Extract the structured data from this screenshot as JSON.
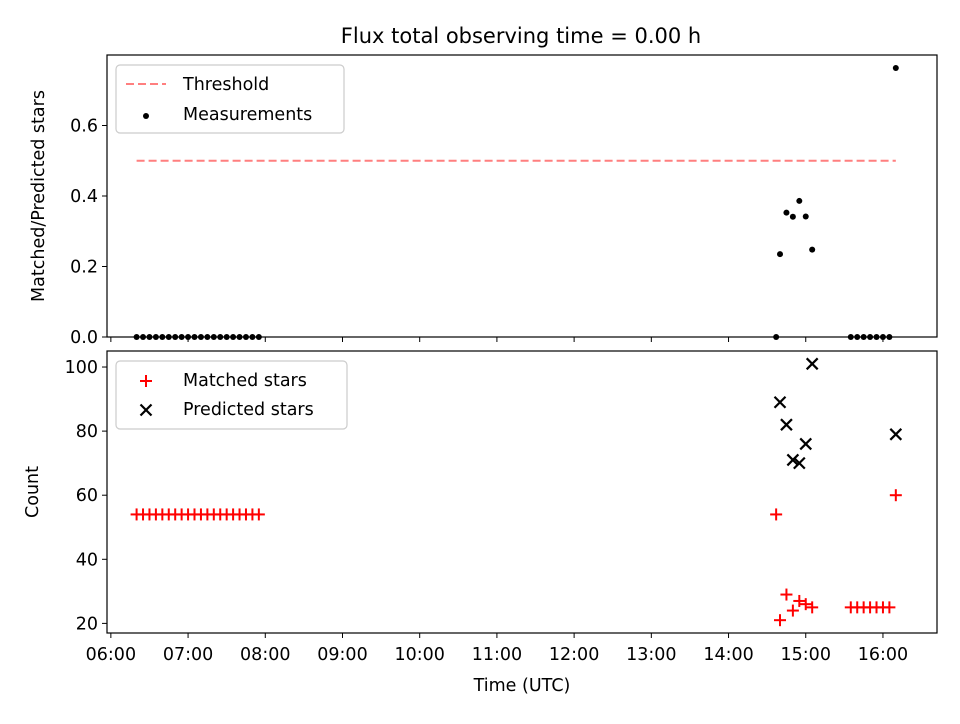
{
  "chart_data": [
    {
      "type": "line+scatter",
      "title": "Flux total observing time = 0.00 h",
      "ylabel": "Matched/Predicted stars",
      "ylim": [
        0,
        0.8
      ],
      "yticks": [
        0.0,
        0.2,
        0.4,
        0.6
      ],
      "ytick_labels": [
        "0.0",
        "0.2",
        "0.4",
        "0.6"
      ],
      "legend_position": "upper-left",
      "colors": {
        "threshold": "#ff7f7f",
        "measurements": "#000000"
      },
      "series": [
        {
          "name": "Threshold",
          "kind": "dashed-line",
          "x": [
            "06:20",
            "16:10"
          ],
          "y": [
            0.5,
            0.5
          ]
        },
        {
          "name": "Measurements",
          "kind": "scatter",
          "x": [
            "06:20",
            "06:25",
            "06:30",
            "06:35",
            "06:40",
            "06:45",
            "06:50",
            "06:55",
            "07:00",
            "07:05",
            "07:10",
            "07:15",
            "07:20",
            "07:25",
            "07:30",
            "07:35",
            "07:40",
            "07:45",
            "07:50",
            "07:55",
            "14:37",
            "14:40",
            "14:45",
            "14:50",
            "14:55",
            "15:00",
            "15:05",
            "15:35",
            "15:40",
            "15:45",
            "15:50",
            "15:55",
            "16:00",
            "16:05",
            "16:10"
          ],
          "y": [
            0,
            0,
            0,
            0,
            0,
            0,
            0,
            0,
            0,
            0,
            0,
            0,
            0,
            0,
            0,
            0,
            0,
            0,
            0,
            0,
            0,
            0.235,
            0.353,
            0.341,
            0.386,
            0.342,
            0.248,
            0,
            0,
            0,
            0,
            0,
            0,
            0,
            0.763
          ]
        }
      ]
    },
    {
      "type": "scatter",
      "xlabel": "Time (UTC)",
      "ylabel": "Count",
      "ylim": [
        17,
        105
      ],
      "yticks": [
        20,
        40,
        60,
        80,
        100
      ],
      "xticks": [
        "06:00",
        "07:00",
        "08:00",
        "09:00",
        "10:00",
        "11:00",
        "12:00",
        "13:00",
        "14:00",
        "15:00",
        "16:00"
      ],
      "xlim_hours": [
        5.95,
        16.7
      ],
      "legend_position": "upper-left",
      "colors": {
        "matched": "#ff0000",
        "predicted": "#000000"
      },
      "series": [
        {
          "name": "Matched stars",
          "marker": "plus",
          "x": [
            "06:20",
            "06:25",
            "06:30",
            "06:35",
            "06:40",
            "06:45",
            "06:50",
            "06:55",
            "07:00",
            "07:05",
            "07:10",
            "07:15",
            "07:20",
            "07:25",
            "07:30",
            "07:35",
            "07:40",
            "07:45",
            "07:50",
            "07:55",
            "14:37",
            "14:40",
            "14:45",
            "14:50",
            "14:55",
            "15:00",
            "15:05",
            "15:35",
            "15:40",
            "15:45",
            "15:50",
            "15:55",
            "16:00",
            "16:05",
            "16:10"
          ],
          "y": [
            54,
            54,
            54,
            54,
            54,
            54,
            54,
            54,
            54,
            54,
            54,
            54,
            54,
            54,
            54,
            54,
            54,
            54,
            54,
            54,
            54,
            21,
            29,
            24,
            27,
            26,
            25,
            25,
            25,
            25,
            25,
            25,
            25,
            25,
            60
          ]
        },
        {
          "name": "Predicted stars",
          "marker": "x",
          "x": [
            "14:40",
            "14:45",
            "14:50",
            "14:55",
            "15:00",
            "15:05",
            "16:10"
          ],
          "y": [
            89,
            82,
            71,
            70,
            76,
            101,
            79
          ]
        }
      ]
    }
  ]
}
